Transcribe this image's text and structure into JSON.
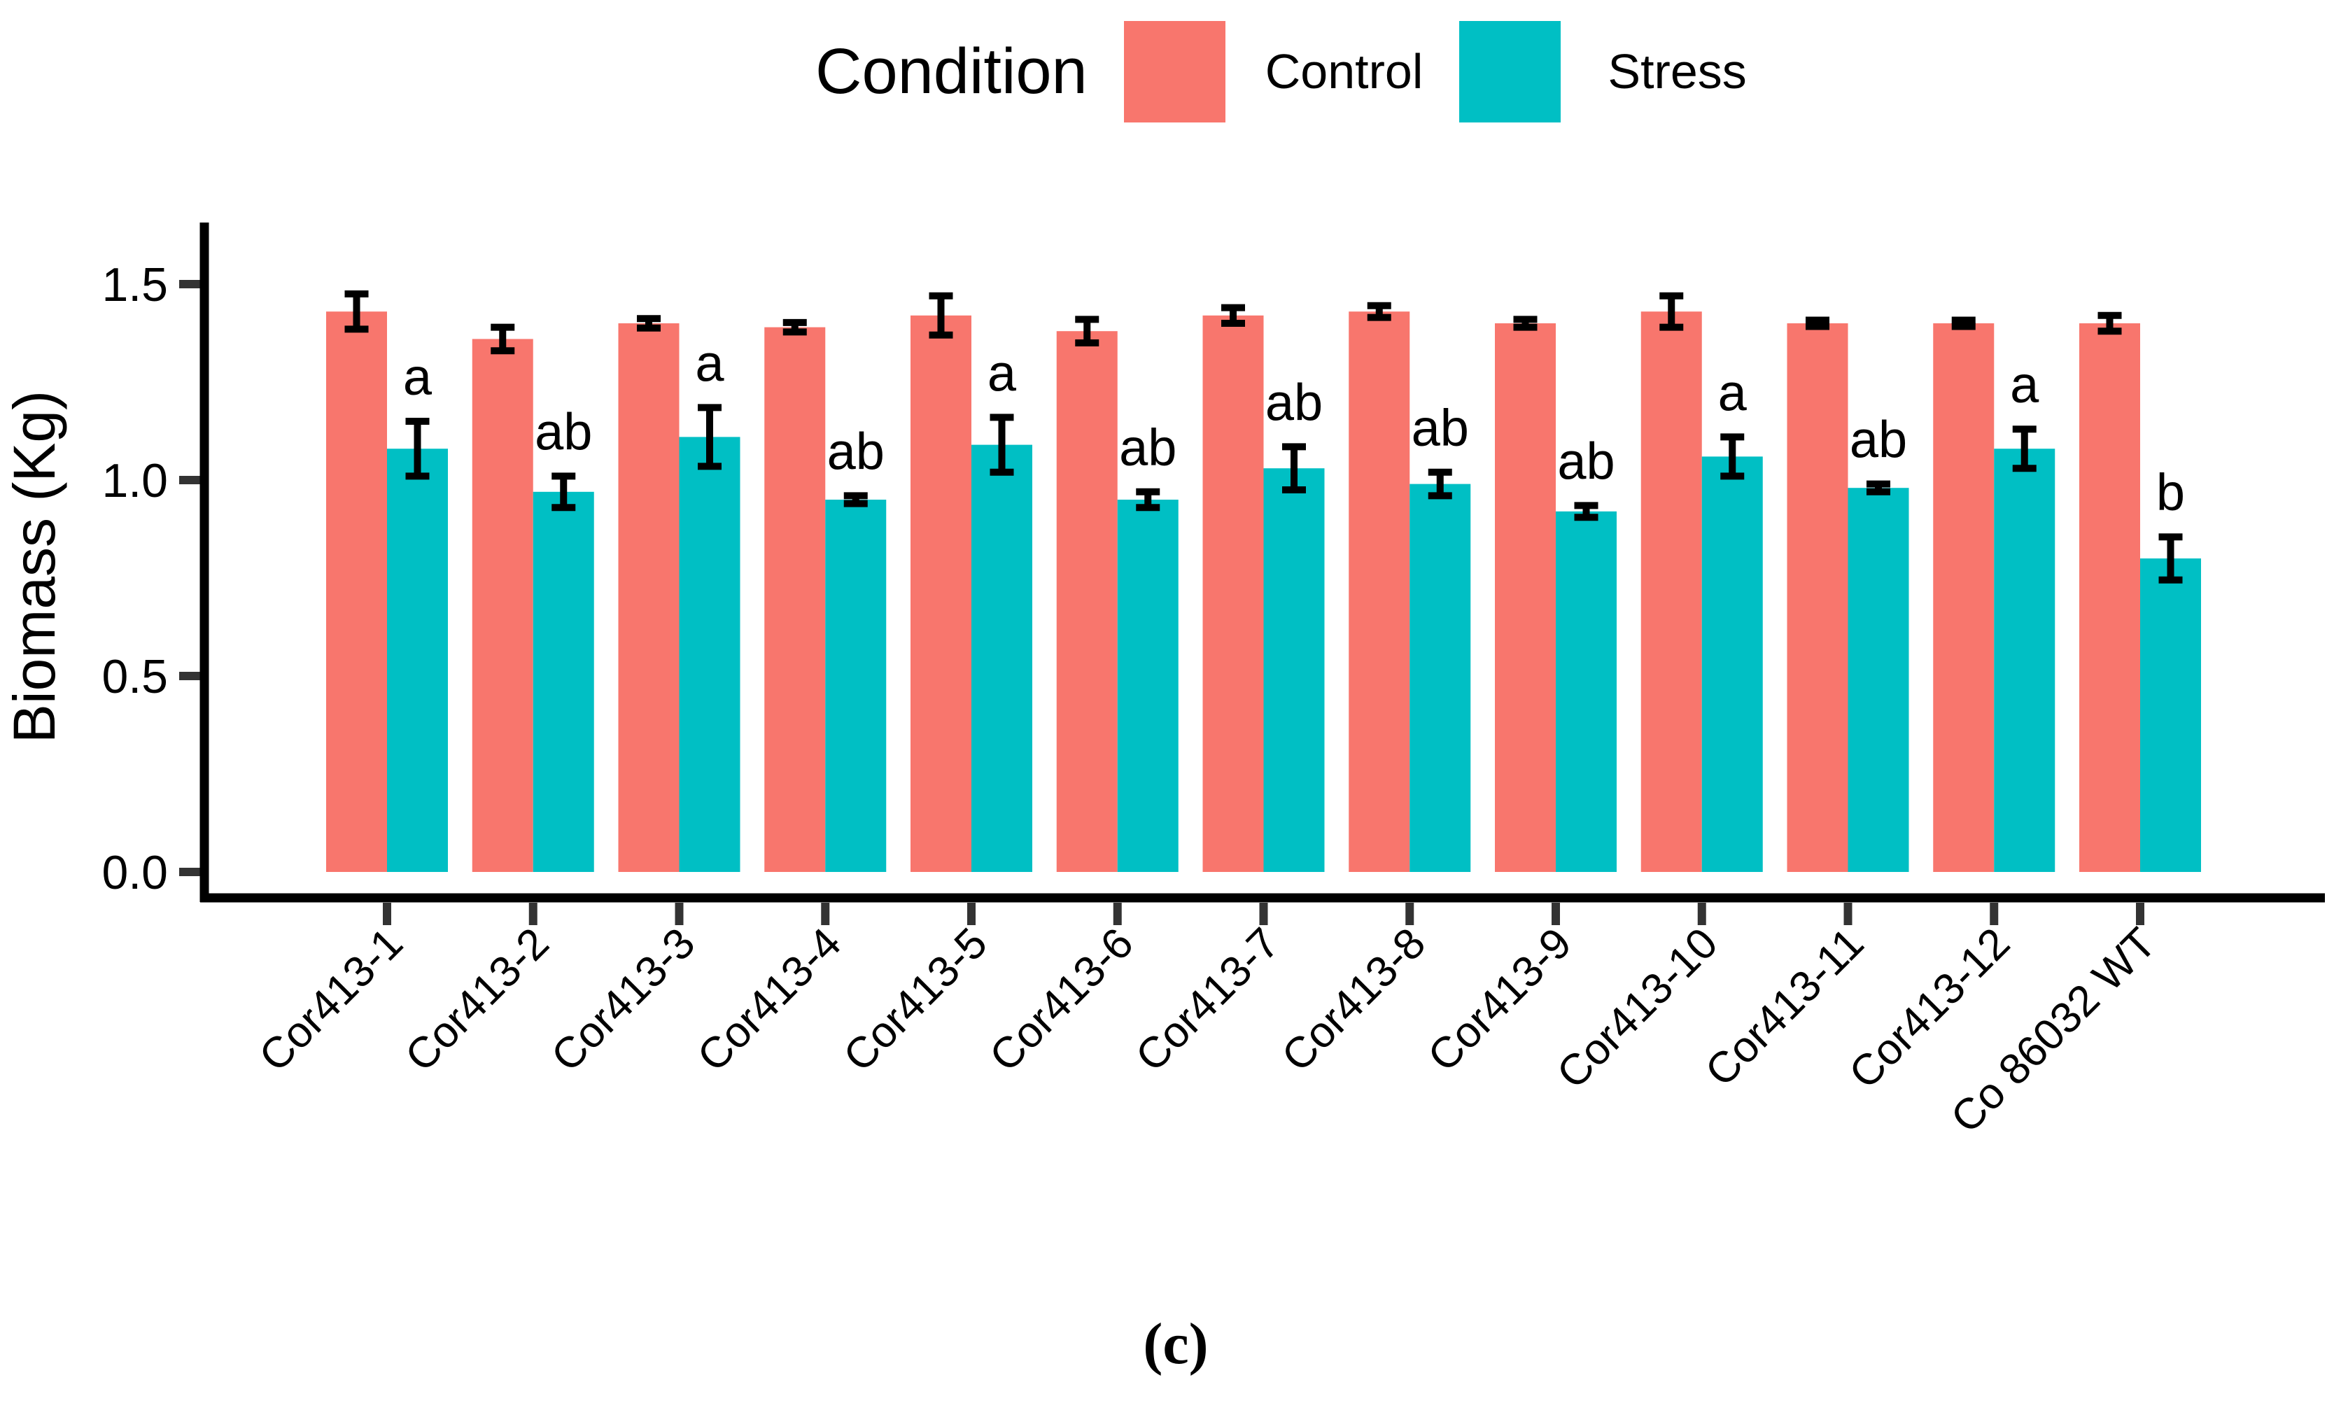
{
  "caption": {
    "label": "(c)"
  },
  "chart_data": {
    "type": "bar",
    "title": "",
    "legend_title": "Condition",
    "legend_position": "top",
    "xlabel": "",
    "ylabel": "Biomass (Kg)",
    "ylim": [
      0,
      1.66
    ],
    "grid": false,
    "yticks": [
      {
        "value": 0.0,
        "label": "0.0"
      },
      {
        "value": 0.5,
        "label": "0.5"
      },
      {
        "value": 1.0,
        "label": "1.0"
      },
      {
        "value": 1.5,
        "label": "1.5"
      }
    ],
    "categories": [
      "Cor413-1",
      "Cor413-2",
      "Cor413-3",
      "Cor413-4",
      "Cor413-5",
      "Cor413-6",
      "Cor413-7",
      "Cor413-8",
      "Cor413-9",
      "Cor413-10",
      "Cor413-11",
      "Cor413-12",
      "Co 86032 WT"
    ],
    "series": [
      {
        "name": "Control",
        "color": "#F8766D",
        "values": [
          1.43,
          1.36,
          1.4,
          1.39,
          1.42,
          1.38,
          1.42,
          1.43,
          1.4,
          1.43,
          1.4,
          1.4,
          1.4
        ],
        "errors": [
          0.045,
          0.03,
          0.012,
          0.012,
          0.05,
          0.03,
          0.02,
          0.015,
          0.01,
          0.04,
          0.008,
          0.008,
          0.02
        ]
      },
      {
        "name": "Stress",
        "color": "#00BFC4",
        "values": [
          1.08,
          0.97,
          1.11,
          0.95,
          1.09,
          0.95,
          1.03,
          0.99,
          0.92,
          1.06,
          0.98,
          1.08,
          0.8
        ],
        "errors": [
          0.07,
          0.04,
          0.075,
          0.01,
          0.07,
          0.02,
          0.055,
          0.03,
          0.015,
          0.05,
          0.01,
          0.05,
          0.055
        ]
      }
    ],
    "significance_letters": [
      "a",
      "ab",
      "a",
      "ab",
      "a",
      "ab",
      "ab",
      "ab",
      "ab",
      "a",
      "ab",
      "a",
      "b"
    ],
    "error_bar_color": "#000000",
    "axis_color": "#000000",
    "tick_color": "#333333"
  }
}
